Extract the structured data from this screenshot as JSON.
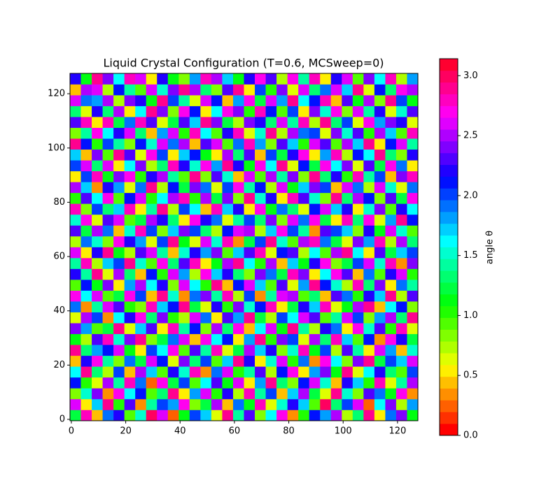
{
  "chart_data": {
    "type": "heatmap",
    "title": "Liquid Crystal Configuration (T=0.6, MCSweep=0)",
    "cmap": "hsv",
    "origin": "lower",
    "xlim": [
      -0.5,
      127.5
    ],
    "ylim": [
      -0.5,
      127.5
    ],
    "xticks": [
      0,
      20,
      40,
      60,
      80,
      100,
      120
    ],
    "yticks": [
      0,
      20,
      40,
      60,
      80,
      100,
      120
    ],
    "colorbar": {
      "label": "angle θ",
      "lim": [
        0,
        3.1416
      ],
      "ticks": [
        {
          "value": 0,
          "label": "0.0"
        },
        {
          "value": 0.5,
          "label": "0.5"
        },
        {
          "value": 1,
          "label": "1.0"
        },
        {
          "value": 1.5,
          "label": "1.5"
        },
        {
          "value": 2,
          "label": "2.0"
        },
        {
          "value": 2.5,
          "label": "2.5"
        },
        {
          "value": 3,
          "label": "3.0"
        }
      ]
    },
    "z": [
      [
        1.2,
        2.8,
        0.4,
        1.9,
        2.2,
        0.9,
        1.5,
        3.0,
        2.6,
        0.2,
        1.1,
        2.0,
        1.7,
        0.6,
        2.9,
        1.4,
        2.3,
        0.8,
        1.6,
        2.7,
        0.3,
        1.0,
        2.1,
        1.8,
        2.5,
        0.7,
        1.3,
        2.9,
        0.5,
        1.9,
        2.4,
        1.1
      ],
      [
        2.6,
        0.5,
        1.7,
        2.9,
        1.0,
        2.3,
        0.3,
        1.4,
        2.0,
        1.8,
        2.7,
        0.8,
        1.2,
        2.5,
        0.4,
        1.9,
        1.1,
        2.8,
        0.6,
        1.5,
        2.2,
        1.7,
        0.9,
        3.0,
        1.3,
        2.0,
        2.6,
        0.2,
        1.6,
        2.4,
        0.7,
        1.8
      ],
      [
        0.8,
        1.5,
        2.4,
        0.3,
        2.7,
        1.6,
        2.1,
        0.9,
        1.3,
        2.9,
        0.5,
        1.8,
        2.6,
        1.0,
        2.2,
        0.7,
        2.8,
        1.4,
        2.0,
        0.4,
        1.7,
        2.5,
        1.2,
        0.6,
        2.9,
        1.5,
        0.8,
        2.3,
        1.9,
        1.1,
        2.7,
        0.3
      ],
      [
        2.1,
        1.0,
        0.6,
        2.5,
        1.4,
        2.8,
        1.9,
        0.2,
        2.7,
        1.2,
        2.0,
        0.9,
        1.6,
        2.3,
        1.1,
        2.6,
        0.5,
        1.8,
        2.9,
        1.3,
        0.8,
        2.1,
        2.6,
        1.5,
        0.4,
        2.2,
        1.7,
        1.0,
        2.8,
        0.6,
        1.4,
        2.5
      ],
      [
        1.6,
        2.9,
        1.3,
        0.7,
        2.0,
        0.4,
        2.5,
        1.7,
        0.9,
        2.2,
        1.5,
        2.8,
        0.3,
        1.9,
        2.6,
        1.0,
        1.4,
        2.3,
        0.7,
        2.1,
        2.7,
        0.5,
        1.8,
        2.4,
        1.1,
        2.9,
        0.6,
        1.6,
        2.2,
        1.3,
        0.9,
        2.0
      ],
      [
        0.4,
        2.2,
        2.7,
        1.4,
        0.8,
        1.9,
        1.2,
        2.6,
        2.1,
        0.6,
        2.4,
        1.3,
        2.0,
        0.9,
        1.7,
        2.9,
        2.2,
        0.5,
        1.5,
        2.6,
        1.0,
        1.9,
        0.3,
        2.7,
        1.6,
        0.8,
        2.4,
        2.9,
        1.2,
        2.0,
        1.7,
        2.6
      ],
      [
        2.9,
        1.3,
        1.8,
        2.1,
        2.6,
        1.1,
        0.5,
        2.0,
        1.6,
        2.7,
        0.9,
        2.3,
        1.4,
        2.8,
        0.6,
        1.2,
        2.5,
        1.7,
        2.2,
        0.8,
        1.5,
        2.8,
        1.1,
        2.0,
        0.7,
        2.3,
        1.4,
        0.5,
        2.6,
        1.8,
        0.4,
        1.5
      ],
      [
        1.1,
        0.7,
        2.3,
        2.8,
        1.5,
        2.4,
        2.9,
        0.8,
        1.2,
        1.9,
        2.6,
        0.4,
        2.7,
        1.6,
        2.1,
        0.5,
        1.8,
        2.9,
        1.0,
        2.4,
        2.0,
        0.6,
        2.5,
        1.3,
        2.8,
        1.7,
        0.9,
        2.1,
        0.3,
        2.7,
        2.2,
        1.2
      ],
      [
        2.4,
        1.8,
        0.9,
        1.2,
        2.9,
        0.6,
        1.7,
        2.3,
        0.5,
        2.8,
        1.4,
        2.1,
        0.8,
        2.5,
        1.3,
        2.7,
        0.4,
        1.6,
        2.6,
        1.1,
        2.9,
        1.4,
        0.7,
        2.2,
        1.9,
        0.5,
        2.7,
        1.5,
        2.3,
        1.0,
        2.8,
        0.6
      ],
      [
        0.6,
        2.5,
        2.0,
        0.3,
        1.6,
        2.2,
        2.7,
        1.3,
        2.4,
        1.0,
        0.7,
        2.6,
        1.9,
        0.5,
        2.3,
        1.8,
        2.9,
        1.2,
        0.7,
        2.0,
        1.6,
        2.6,
        2.3,
        0.9,
        1.4,
        2.6,
        2.0,
        0.8,
        1.8,
        2.5,
        1.3,
        2.9
      ],
      [
        1.9,
        0.3,
        1.4,
        2.6,
        2.3,
        1.0,
        0.8,
        2.8,
        1.7,
        2.1,
        2.9,
        1.2,
        0.6,
        2.2,
        1.0,
        2.4,
        1.5,
        2.1,
        2.8,
        0.5,
        1.2,
        2.2,
        1.7,
        2.8,
        0.6,
        1.1,
        2.5,
        2.9,
        0.4,
        1.6,
        2.1,
        0.8
      ],
      [
        2.7,
        1.6,
        2.6,
        0.9,
        1.2,
        2.7,
        2.0,
        0.4,
        2.9,
        1.5,
        0.3,
        1.9,
        2.4,
        1.4,
        2.8,
        0.7,
        2.0,
        0.3,
        1.4,
        2.6,
        2.5,
        0.9,
        1.3,
        0.4,
        2.3,
        1.9,
        1.0,
        2.2,
        1.7,
        2.9,
        0.7,
        2.3
      ],
      [
        0.9,
        2.1,
        1.1,
        2.4,
        0.5,
        1.8,
        2.5,
        1.6,
        2.2,
        0.8,
        2.6,
        1.6,
        1.0,
        2.9,
        0.4,
        2.1,
        2.6,
        1.7,
        0.9,
        2.3,
        0.6,
        1.8,
        2.9,
        2.1,
        1.5,
        0.7,
        2.8,
        1.3,
        2.4,
        0.5,
        1.9,
        1.4
      ],
      [
        2.2,
        1.4,
        2.9,
        0.6,
        2.5,
        1.3,
        0.4,
        2.1,
        1.0,
        2.6,
        1.8,
        0.7,
        2.7,
        1.7,
        2.2,
        1.3,
        0.8,
        2.4,
        1.9,
        1.2,
        2.8,
        2.4,
        0.5,
        1.6,
        2.7,
        2.3,
        0.4,
        1.9,
        0.9,
        2.2,
        2.6,
        1.0
      ],
      [
        1.4,
        2.8,
        0.7,
        1.7,
        2.0,
        2.9,
        1.5,
        0.9,
        2.7,
        1.3,
        2.3,
        2.8,
        0.5,
        1.1,
        2.5,
        2.9,
        1.6,
        1.0,
        2.5,
        0.4,
        1.7,
        1.1,
        2.2,
        2.7,
        0.8,
        1.2,
        2.0,
        2.6,
        1.5,
        2.8,
        0.3,
        2.4
      ],
      [
        2.6,
        0.5,
        2.2,
        2.9,
        1.1,
        0.7,
        2.3,
        2.6,
        1.4,
        0.4,
        1.5,
        2.2,
        1.8,
        2.4,
        0.9,
        1.7,
        2.3,
        2.8,
        0.6,
        2.1,
        2.3,
        0.7,
        1.6,
        0.9,
        2.5,
        2.9,
        1.6,
        0.5,
        2.3,
        1.2,
        1.7,
        2.0
      ],
      [
        0.7,
        1.9,
        1.5,
        0.8,
        2.7,
        2.2,
        1.8,
        0.6,
        2.0,
        2.9,
        1.1,
        0.6,
        2.6,
        1.5,
        2.8,
        0.3,
        1.2,
        2.0,
        2.9,
        1.5,
        0.9,
        2.5,
        2.8,
        1.9,
        1.2,
        0.6,
        2.4,
        1.8,
        2.8,
        0.7,
        2.5,
        1.3
      ],
      [
        2.3,
        1.2,
        2.5,
        1.9,
        0.4,
        1.5,
        2.8,
        2.0,
        0.8,
        1.7,
        2.4,
        2.0,
        1.3,
        0.7,
        2.1,
        2.6,
        2.5,
        0.7,
        1.7,
        2.7,
        2.0,
        1.4,
        0.3,
        2.3,
        2.0,
        1.7,
        0.8,
        2.2,
        1.1,
        2.6,
        1.5,
        0.9
      ],
      [
        1.5,
        2.7,
        0.6,
        2.3,
        2.6,
        0.9,
        1.2,
        2.5,
        2.2,
        1.3,
        0.5,
        2.7,
        2.2,
        1.9,
        0.6,
        1.4,
        2.0,
        1.3,
        2.4,
        0.8,
        2.6,
        1.9,
        2.7,
        1.2,
        0.5,
        2.8,
        1.3,
        2.7,
        0.6,
        1.8,
        2.9,
        2.1
      ],
      [
        2.8,
        0.8,
        2.0,
        1.3,
        1.7,
        2.8,
        0.5,
        1.4,
        2.9,
        0.7,
        2.0,
        1.6,
        0.4,
        2.8,
        1.7,
        2.2,
        0.5,
        2.7,
        1.1,
        1.9,
        1.3,
        0.6,
        2.1,
        2.6,
        1.7,
        2.2,
        0.5,
        1.5,
        2.4,
        0.9,
        2.2,
        1.6
      ],
      [
        1.0,
        2.3,
        1.6,
        2.7,
        0.9,
        2.1,
        2.6,
        1.0,
        1.6,
        2.5,
        2.8,
        1.0,
        2.5,
        1.2,
        2.4,
        0.8,
        2.9,
        1.5,
        2.2,
        0.5,
        2.8,
        2.3,
        1.5,
        0.8,
        2.9,
        1.3,
        2.5,
        2.1,
        0.8,
        2.3,
        1.2,
        2.7
      ],
      [
        2.5,
        1.7,
        0.3,
        2.2,
        1.8,
        0.6,
        1.9,
        2.9,
        0.7,
        2.1,
        1.2,
        2.4,
        1.9,
        0.6,
        2.0,
        2.7,
        1.4,
        2.1,
        0.7,
        2.6,
        1.1,
        1.7,
        2.4,
        2.0,
        0.4,
        2.6,
        1.9,
        0.7,
        2.6,
        1.5,
        0.6,
        1.9
      ],
      [
        0.5,
        2.0,
        2.8,
        1.1,
        2.4,
        2.7,
        1.0,
        2.2,
        2.5,
        1.4,
        0.9,
        2.9,
        0.8,
        2.3,
        1.5,
        0.4,
        2.6,
        0.9,
        2.5,
        1.4,
        2.4,
        0.8,
        2.9,
        1.3,
        2.2,
        1.0,
        2.8,
        1.4,
        2.0,
        0.4,
        2.4,
        2.8
      ],
      [
        2.0,
        2.6,
        1.3,
        2.6,
        0.5,
        1.6,
        2.4,
        0.7,
        1.3,
        2.8,
        2.2,
        1.5,
        2.7,
        1.8,
        2.9,
        2.2,
        1.1,
        2.7,
        1.6,
        2.9,
        0.6,
        2.1,
        1.2,
        2.7,
        1.6,
        2.4,
        0.6,
        2.3,
        1.2,
        2.7,
        1.9,
        0.5
      ],
      [
        1.7,
        0.4,
        2.4,
        0.9,
        2.9,
        2.3,
        0.6,
        2.7,
        2.0,
        0.5,
        1.7,
        2.1,
        1.1,
        0.5,
        2.5,
        1.3,
        2.3,
        0.4,
        2.0,
        1.2,
        2.2,
        2.7,
        0.5,
        1.8,
        2.8,
        0.7,
        2.1,
        1.6,
        2.9,
        1.3,
        0.8,
        2.2
      ],
      [
        2.9,
        2.1,
        1.0,
        2.0,
        1.4,
        0.8,
        2.1,
        1.5,
        2.6,
        1.9,
        2.5,
        0.4,
        2.3,
        2.6,
        0.9,
        1.9,
        2.8,
        1.8,
        0.8,
        2.3,
        1.7,
        1.0,
        2.6,
        2.3,
        0.9,
        2.5,
        1.7,
        2.9,
        0.5,
        2.1,
        2.6,
        1.4
      ],
      [
        0.8,
        1.4,
        2.7,
        1.6,
        2.2,
        2.6,
        1.3,
        0.4,
        1.8,
        2.6,
        1.0,
        2.8,
        1.6,
        0.9,
        2.2,
        2.8,
        0.6,
        1.5,
        2.9,
        0.7,
        2.5,
        1.9,
        2.0,
        0.6,
        2.4,
        1.5,
        2.3,
        1.0,
        2.5,
        1.7,
        0.9,
        2.8
      ],
      [
        2.3,
        2.8,
        0.5,
        2.8,
        1.2,
        1.9,
        2.8,
        2.3,
        0.6,
        1.2,
        2.3,
        1.7,
        2.9,
        2.4,
        1.2,
        0.7,
        2.4,
        2.2,
        1.3,
        2.6,
        1.4,
        2.8,
        0.7,
        2.9,
        1.3,
        2.0,
        0.6,
        2.7,
        1.8,
        2.4,
        2.2,
        0.6
      ],
      [
        1.3,
        0.6,
        2.2,
        1.3,
        2.5,
        0.5,
        1.6,
        2.9,
        2.4,
        0.8,
        2.7,
        2.1,
        0.5,
        1.6,
        2.7,
        2.4,
        1.0,
        2.8,
        2.1,
        0.9,
        2.0,
        0.5,
        2.4,
        1.5,
        2.7,
        0.8,
        2.6,
        1.4,
        2.2,
        0.6,
        1.5,
        2.3
      ],
      [
        2.6,
        1.9,
        1.8,
        2.5,
        0.7,
        2.4,
        2.2,
        1.1,
        2.9,
        2.0,
        1.4,
        0.6,
        2.6,
        2.1,
        0.4,
        1.8,
        2.7,
        1.2,
        2.6,
        1.8,
        2.9,
        1.6,
        2.1,
        2.8,
        0.4,
        2.3,
        1.1,
        2.5,
        0.8,
        2.9,
        2.0,
        1.1
      ],
      [
        0.4,
        2.5,
        2.6,
        0.7,
        2.1,
        1.4,
        0.9,
        2.6,
        1.5,
        2.4,
        2.9,
        2.5,
        1.3,
        0.8,
        2.3,
        2.9,
        0.5,
        2.0,
        1.0,
        2.4,
        0.6,
        2.6,
        1.3,
        1.9,
        2.6,
        1.7,
        2.9,
        0.6,
        2.1,
        1.3,
        2.7,
        2.5
      ],
      [
        2.2,
        1.1,
        2.9,
        2.4,
        1.6,
        2.8,
        2.6,
        0.5,
        2.2,
        1.1,
        0.8,
        1.8,
        2.8,
        2.5,
        1.7,
        1.1,
        2.2,
        2.7,
        2.3,
        0.7,
        2.7,
        1.4,
        2.8,
        0.5,
        2.2,
        2.6,
        0.9,
        2.4,
        1.6,
        2.8,
        0.7,
        1.8
      ]
    ]
  }
}
